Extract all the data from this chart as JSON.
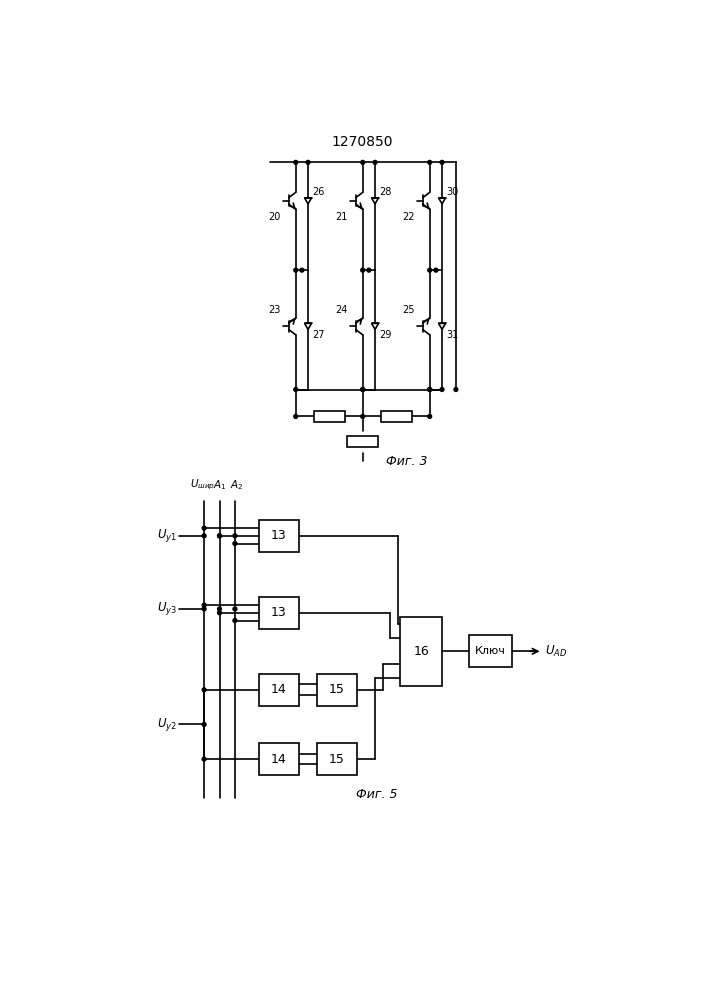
{
  "title": "1270850",
  "fig3_label": "Фиг. 3",
  "fig5_label": "Фиг. 5",
  "bg_color": "#ffffff"
}
